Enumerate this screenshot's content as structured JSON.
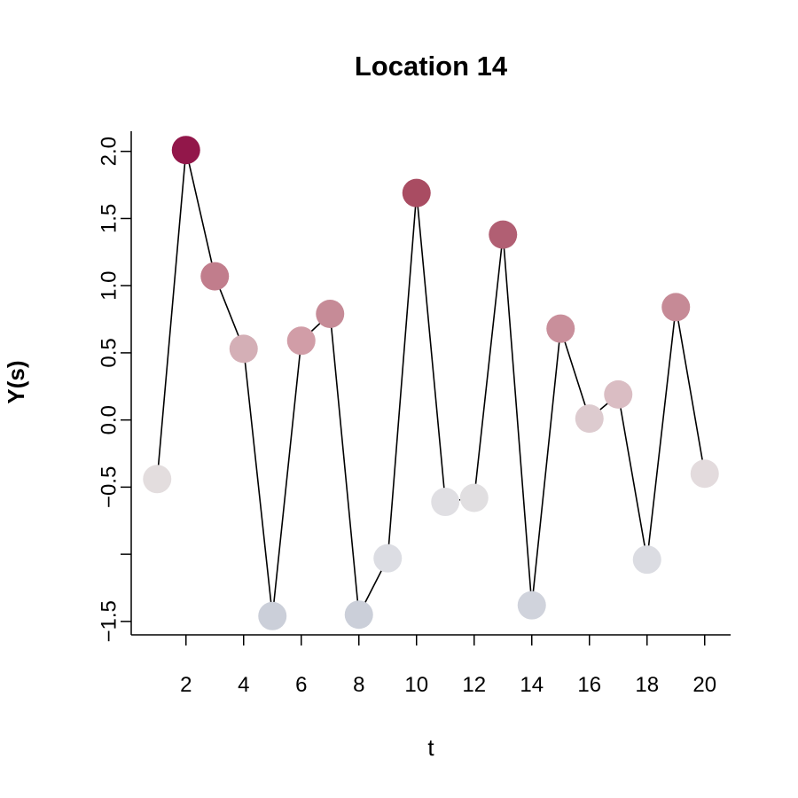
{
  "chart_data": {
    "type": "line",
    "title": "Location 14",
    "xlabel": "t",
    "ylabel": "Y(s)",
    "x": [
      1,
      2,
      3,
      4,
      5,
      6,
      7,
      8,
      9,
      10,
      11,
      12,
      13,
      14,
      15,
      16,
      17,
      18,
      19,
      20
    ],
    "y": [
      -0.44,
      2.01,
      1.07,
      0.53,
      -1.46,
      0.59,
      0.79,
      -1.45,
      -1.03,
      1.69,
      -0.61,
      -0.58,
      1.38,
      -1.38,
      0.68,
      0.01,
      0.19,
      -1.04,
      0.84,
      -0.4
    ],
    "point_colors": [
      "#E3DDDE",
      "#92174A",
      "#C17D8C",
      "#D4AFB6",
      "#CBCFD9",
      "#D19DA7",
      "#C68B97",
      "#CBCFD9",
      "#DCDDE3",
      "#A94C62",
      "#E0DFE3",
      "#E1DFE1",
      "#B15F73",
      "#D0D3DC",
      "#C98F9B",
      "#DDCBCF",
      "#DABDC3",
      "#DBDCE2",
      "#C68A96",
      "#E3DBDD"
    ],
    "xlim": [
      0.1,
      20.9
    ],
    "ylim": [
      -1.6,
      2.15
    ],
    "x_ticks": [
      2,
      4,
      6,
      8,
      10,
      12,
      14,
      16,
      18,
      20
    ],
    "x_tick_labels": [
      "2",
      "4",
      "6",
      "8",
      "10",
      "12",
      "14",
      "16",
      "18",
      "20"
    ],
    "y_ticks": [
      -1.5,
      -1.0,
      -0.5,
      0.0,
      0.5,
      1.0,
      1.5,
      2.0
    ],
    "y_tick_labels": [
      "−1.5",
      "",
      "−0.5",
      "0.0",
      "0.5",
      "1.0",
      "1.5",
      "2.0"
    ],
    "grid": false,
    "legend": "none"
  }
}
